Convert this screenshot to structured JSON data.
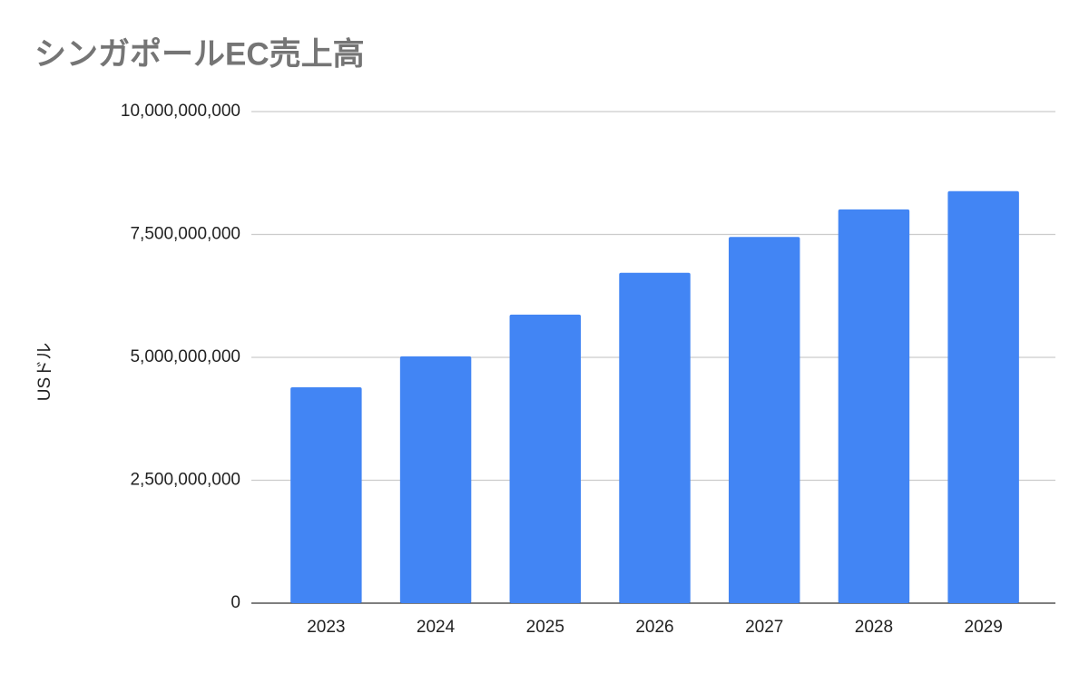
{
  "chart_data": {
    "type": "bar",
    "title": "シンガポールEC売上高",
    "y_label": "USドル",
    "categories": [
      "2023",
      "2024",
      "2025",
      "2026",
      "2027",
      "2028",
      "2029"
    ],
    "values": [
      4390000000,
      5020000000,
      5870000000,
      6720000000,
      7450000000,
      8010000000,
      8380000000
    ],
    "color": "#4285f4",
    "ylim": [
      0,
      10000000000
    ],
    "yticks": [
      0,
      {
        "value": 2500000000,
        "label": "2,500,000,000"
      },
      {
        "value": 5000000000,
        "label": "5,000,000,000"
      },
      {
        "value": 7500000000,
        "label": "7,500,000,000"
      },
      {
        "value": 10000000000,
        "label": "10,000,000,000"
      }
    ],
    "grid": true
  }
}
